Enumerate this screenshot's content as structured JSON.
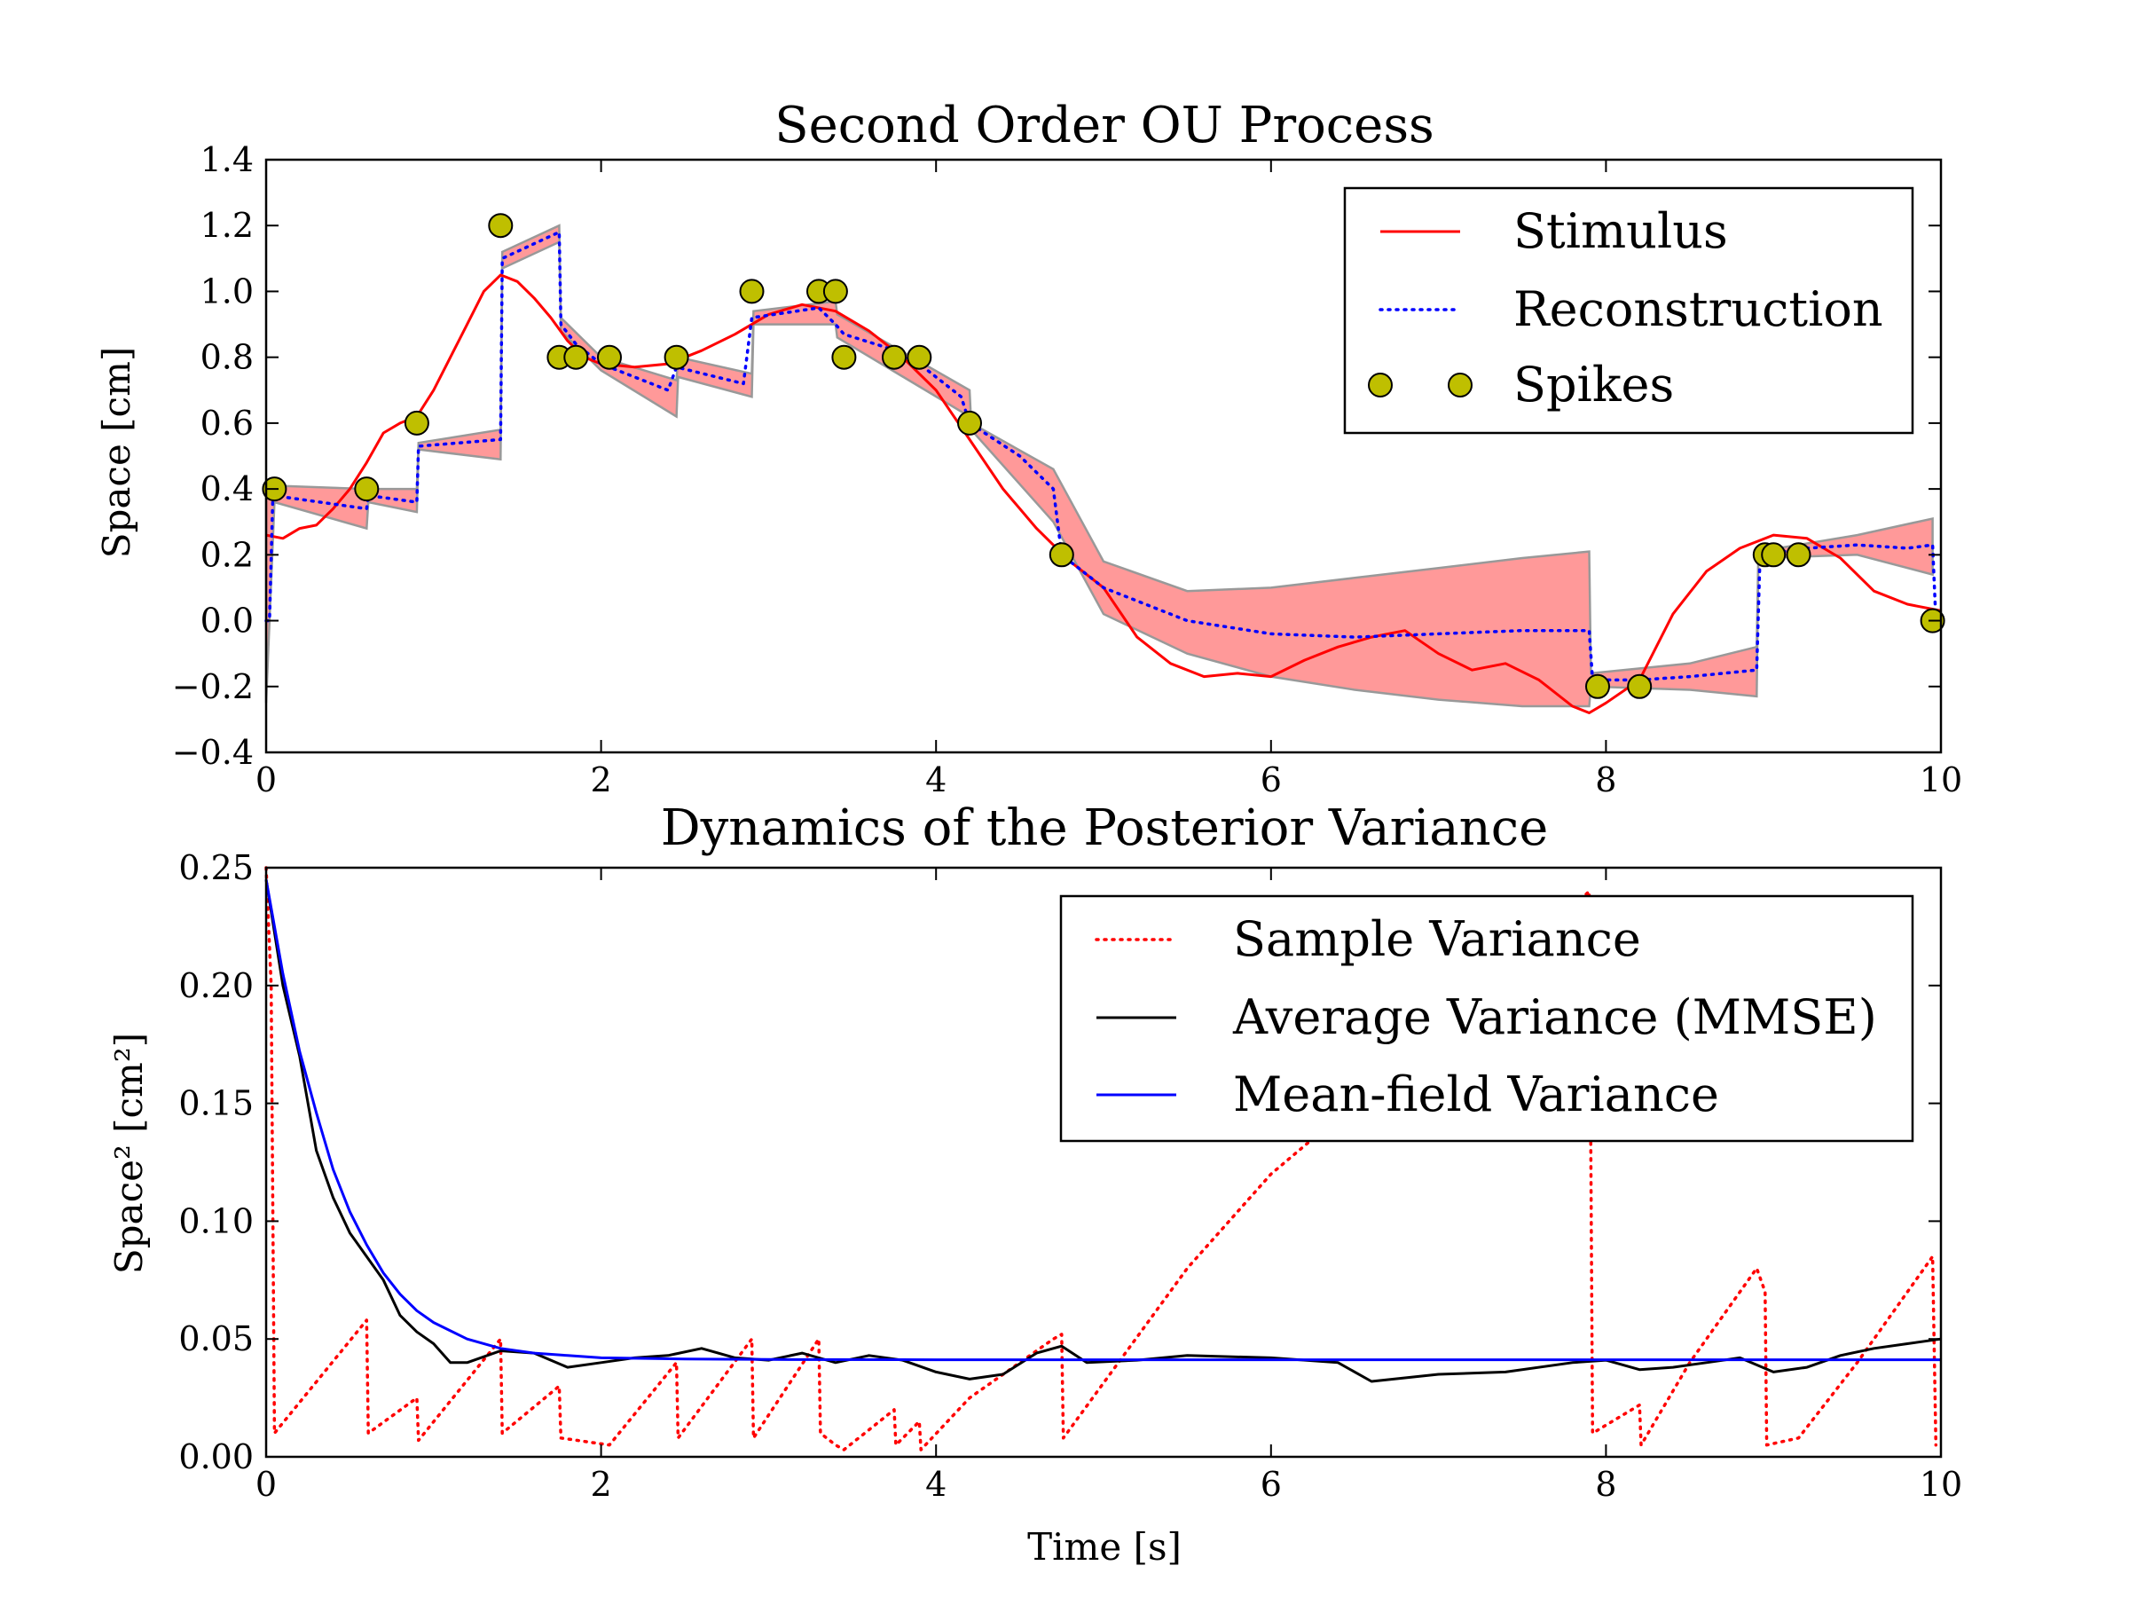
{
  "chart_data": [
    {
      "type": "line",
      "title": "Second Order OU Process",
      "xlabel": "",
      "ylabel": "Space [cm]",
      "xlim": [
        0,
        10
      ],
      "ylim": [
        -0.4,
        1.4
      ],
      "xticks": [
        0,
        2,
        4,
        6,
        8,
        10
      ],
      "yticks": [
        -0.4,
        -0.2,
        0.0,
        0.2,
        0.4,
        0.6,
        0.8,
        1.0,
        1.2,
        1.4
      ],
      "ytick_labels": [
        "−0.4",
        "−0.2",
        "0.0",
        "0.2",
        "0.4",
        "0.6",
        "0.8",
        "1.0",
        "1.2",
        "1.4"
      ],
      "legend_position": "top-right",
      "series": [
        {
          "name": "Stimulus",
          "style": "solid",
          "color": "#ff0000",
          "x": [
            0,
            0.1,
            0.2,
            0.3,
            0.4,
            0.5,
            0.6,
            0.7,
            0.8,
            0.9,
            1.0,
            1.1,
            1.2,
            1.3,
            1.4,
            1.5,
            1.6,
            1.7,
            1.8,
            1.9,
            2.0,
            2.2,
            2.4,
            2.6,
            2.8,
            3.0,
            3.2,
            3.4,
            3.6,
            3.8,
            4.0,
            4.2,
            4.4,
            4.6,
            4.8,
            5.0,
            5.2,
            5.4,
            5.6,
            5.8,
            6.0,
            6.2,
            6.4,
            6.6,
            6.8,
            7.0,
            7.2,
            7.4,
            7.6,
            7.8,
            7.9,
            8.0,
            8.2,
            8.4,
            8.6,
            8.8,
            9.0,
            9.2,
            9.4,
            9.6,
            9.8,
            10.0
          ],
          "y": [
            0.26,
            0.25,
            0.28,
            0.29,
            0.34,
            0.4,
            0.48,
            0.57,
            0.6,
            0.62,
            0.7,
            0.8,
            0.9,
            1.0,
            1.05,
            1.03,
            0.98,
            0.92,
            0.85,
            0.8,
            0.78,
            0.77,
            0.78,
            0.82,
            0.87,
            0.93,
            0.96,
            0.94,
            0.88,
            0.8,
            0.7,
            0.55,
            0.4,
            0.28,
            0.18,
            0.1,
            -0.05,
            -0.13,
            -0.17,
            -0.16,
            -0.17,
            -0.12,
            -0.08,
            -0.05,
            -0.03,
            -0.1,
            -0.15,
            -0.13,
            -0.18,
            -0.26,
            -0.28,
            -0.25,
            -0.18,
            0.02,
            0.15,
            0.22,
            0.26,
            0.25,
            0.19,
            0.09,
            0.05,
            0.03
          ]
        },
        {
          "name": "Reconstruction",
          "style": "dotted",
          "color": "#0000ff",
          "x": [
            0,
            0.02,
            0.04,
            0.6,
            0.61,
            0.9,
            0.91,
            1.4,
            1.41,
            1.75,
            1.76,
            1.85,
            2.0,
            2.4,
            2.45,
            2.85,
            2.9,
            3.3,
            3.4,
            3.45,
            3.7,
            3.9,
            4.15,
            4.2,
            4.5,
            4.7,
            4.75,
            5.0,
            5.5,
            6.0,
            6.5,
            7.0,
            7.5,
            7.9,
            7.92,
            8.2,
            8.5,
            8.9,
            8.92,
            9.2,
            9.5,
            9.8,
            9.95,
            9.97
          ],
          "y": [
            0.0,
            0.0,
            0.38,
            0.34,
            0.38,
            0.36,
            0.53,
            0.55,
            1.1,
            1.18,
            0.9,
            0.84,
            0.78,
            0.7,
            0.77,
            0.72,
            0.92,
            0.95,
            0.9,
            0.87,
            0.83,
            0.78,
            0.68,
            0.6,
            0.5,
            0.4,
            0.2,
            0.1,
            0.0,
            -0.04,
            -0.05,
            -0.04,
            -0.03,
            -0.03,
            -0.18,
            -0.18,
            -0.17,
            -0.15,
            0.2,
            0.22,
            0.23,
            0.22,
            0.23,
            0.0
          ]
        },
        {
          "name": "Spikes",
          "style": "marker",
          "color": "#bfbf00",
          "x": [
            0.05,
            0.6,
            0.9,
            1.4,
            1.75,
            1.85,
            2.05,
            2.45,
            2.9,
            3.3,
            3.4,
            3.45,
            3.75,
            3.9,
            4.2,
            4.75,
            7.95,
            8.2,
            8.95,
            9.0,
            9.15,
            9.95
          ],
          "y": [
            0.4,
            0.4,
            0.6,
            1.2,
            0.8,
            0.8,
            0.8,
            0.8,
            1.0,
            1.0,
            1.0,
            0.8,
            0.8,
            0.8,
            0.6,
            0.2,
            -0.2,
            -0.2,
            0.2,
            0.2,
            0.2,
            0.0
          ]
        }
      ],
      "band": {
        "color": "#ff9999",
        "x": [
          0,
          0.05,
          0.6,
          0.61,
          0.9,
          0.91,
          1.4,
          1.41,
          1.75,
          1.76,
          2.0,
          2.45,
          2.46,
          2.9,
          2.91,
          3.4,
          3.41,
          4.2,
          4.21,
          4.7,
          5.0,
          5.5,
          6.0,
          6.5,
          7.0,
          7.5,
          7.9,
          7.91,
          8.5,
          8.9,
          8.91,
          9.5,
          9.95
        ],
        "upper": [
          0.4,
          0.41,
          0.4,
          0.4,
          0.4,
          0.54,
          0.58,
          1.12,
          1.2,
          0.92,
          0.8,
          0.73,
          0.8,
          0.75,
          0.94,
          0.97,
          0.93,
          0.7,
          0.6,
          0.46,
          0.18,
          0.09,
          0.1,
          0.13,
          0.16,
          0.19,
          0.21,
          -0.16,
          -0.13,
          -0.08,
          0.21,
          0.26,
          0.31
        ],
        "lower": [
          -0.25,
          0.36,
          0.28,
          0.36,
          0.33,
          0.52,
          0.49,
          1.07,
          1.15,
          0.88,
          0.76,
          0.62,
          0.74,
          0.68,
          0.9,
          0.9,
          0.86,
          0.62,
          0.58,
          0.3,
          0.02,
          -0.1,
          -0.17,
          -0.21,
          -0.24,
          -0.26,
          -0.26,
          -0.2,
          -0.21,
          -0.23,
          0.19,
          0.2,
          0.14
        ]
      }
    },
    {
      "type": "line",
      "title": "Dynamics of the Posterior Variance",
      "xlabel": "Time [s]",
      "ylabel": "Space² [cm²]",
      "xlim": [
        0,
        10
      ],
      "ylim": [
        0,
        0.25
      ],
      "xticks": [
        0,
        2,
        4,
        6,
        8,
        10
      ],
      "yticks": [
        0.0,
        0.05,
        0.1,
        0.15,
        0.2,
        0.25
      ],
      "ytick_labels": [
        "0.00",
        "0.05",
        "0.10",
        "0.15",
        "0.20",
        "0.25"
      ],
      "legend_position": "top-right",
      "series": [
        {
          "name": "Sample Variance",
          "style": "dotted",
          "color": "#ff0000",
          "x": [
            0.0,
            0.03,
            0.05,
            0.6,
            0.61,
            0.9,
            0.91,
            1.4,
            1.41,
            1.75,
            1.76,
            2.05,
            2.45,
            2.46,
            2.9,
            2.91,
            3.3,
            3.31,
            3.4,
            3.45,
            3.75,
            3.76,
            3.9,
            3.91,
            4.2,
            4.7,
            4.75,
            4.76,
            5.5,
            6.0,
            7.0,
            7.9,
            7.92,
            8.2,
            8.21,
            8.5,
            8.9,
            8.95,
            8.96,
            9.15,
            9.5,
            9.95,
            9.97
          ],
          "y": [
            0.25,
            0.2,
            0.01,
            0.058,
            0.01,
            0.025,
            0.007,
            0.05,
            0.01,
            0.03,
            0.008,
            0.005,
            0.04,
            0.008,
            0.05,
            0.008,
            0.05,
            0.01,
            0.005,
            0.003,
            0.02,
            0.005,
            0.015,
            0.003,
            0.025,
            0.05,
            0.052,
            0.008,
            0.08,
            0.12,
            0.18,
            0.24,
            0.01,
            0.022,
            0.005,
            0.04,
            0.08,
            0.07,
            0.005,
            0.008,
            0.04,
            0.085,
            0.005
          ]
        },
        {
          "name": "Average Variance (MMSE)",
          "style": "solid",
          "color": "#000000",
          "x": [
            0.0,
            0.1,
            0.2,
            0.3,
            0.4,
            0.5,
            0.6,
            0.7,
            0.8,
            0.9,
            1.0,
            1.1,
            1.2,
            1.4,
            1.6,
            1.8,
            2.0,
            2.2,
            2.4,
            2.6,
            2.8,
            3.0,
            3.2,
            3.4,
            3.6,
            3.8,
            4.0,
            4.2,
            4.4,
            4.6,
            4.75,
            4.9,
            5.2,
            5.5,
            6.0,
            6.4,
            6.6,
            7.0,
            7.4,
            7.8,
            8.0,
            8.2,
            8.4,
            8.6,
            8.8,
            9.0,
            9.2,
            9.4,
            9.6,
            9.8,
            10.0
          ],
          "y": [
            0.245,
            0.2,
            0.17,
            0.13,
            0.11,
            0.095,
            0.085,
            0.075,
            0.06,
            0.053,
            0.048,
            0.04,
            0.04,
            0.045,
            0.044,
            0.038,
            0.04,
            0.042,
            0.043,
            0.046,
            0.042,
            0.041,
            0.044,
            0.04,
            0.043,
            0.041,
            0.036,
            0.033,
            0.035,
            0.044,
            0.047,
            0.04,
            0.041,
            0.043,
            0.042,
            0.04,
            0.032,
            0.035,
            0.036,
            0.04,
            0.041,
            0.037,
            0.038,
            0.04,
            0.042,
            0.036,
            0.038,
            0.043,
            0.046,
            0.048,
            0.05
          ]
        },
        {
          "name": "Mean-field Variance",
          "style": "solid",
          "color": "#0000ff",
          "x": [
            0.0,
            0.1,
            0.2,
            0.3,
            0.4,
            0.5,
            0.6,
            0.7,
            0.8,
            0.9,
            1.0,
            1.2,
            1.4,
            1.6,
            1.8,
            2.0,
            2.5,
            3.0,
            4.0,
            5.0,
            6.0,
            7.0,
            8.0,
            9.0,
            10.0
          ],
          "y": [
            0.245,
            0.205,
            0.172,
            0.146,
            0.122,
            0.104,
            0.09,
            0.078,
            0.069,
            0.062,
            0.057,
            0.05,
            0.046,
            0.044,
            0.043,
            0.042,
            0.0415,
            0.0413,
            0.0412,
            0.0412,
            0.0412,
            0.0412,
            0.0412,
            0.0412,
            0.0412
          ]
        }
      ]
    }
  ]
}
